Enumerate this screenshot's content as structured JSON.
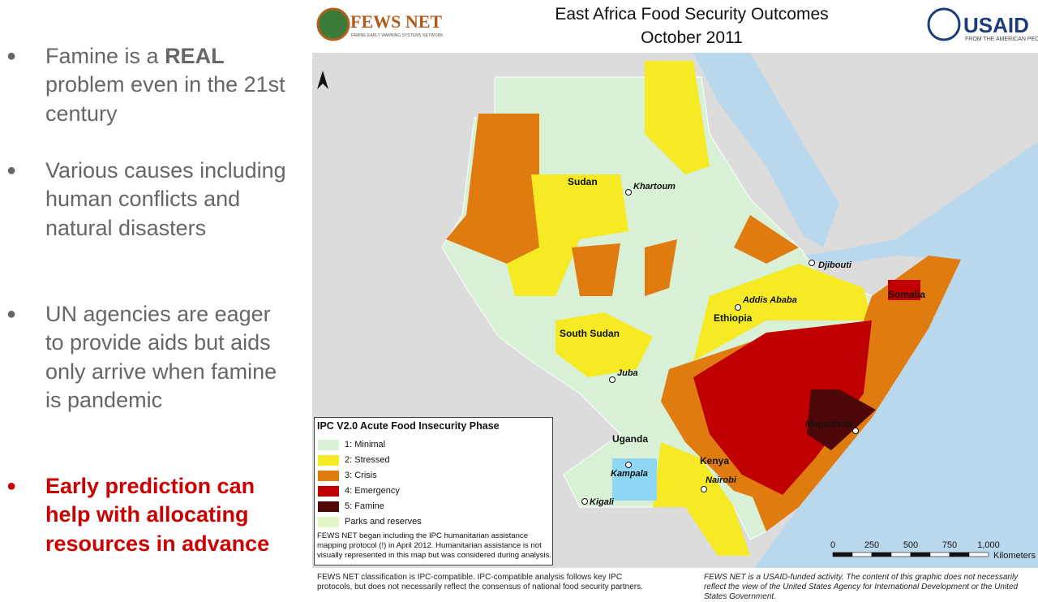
{
  "bullets": [
    [
      "Famine is a ",
      "REAL",
      " problem even in the 21st century"
    ],
    [
      "Various causes including human conflicts and natural disasters"
    ],
    [
      "UN agencies are eager to provide aids but aids only arrive when famine is pandemic"
    ],
    [
      "Early prediction can help with allocating resources in advance"
    ]
  ],
  "header": {
    "logo_left": "FEWS NET",
    "logo_left_tagline": "FAMINE EARLY WARNING SYSTEMS NETWORK",
    "title_lines": [
      "East Africa Food Security Outcomes",
      "October 2011"
    ],
    "logo_right": "USAID",
    "logo_right_tagline": "FROM THE AMERICAN PEOPLE"
  },
  "map": {
    "countries": [
      "Sudan",
      "South Sudan",
      "Ethiopia",
      "Somalia",
      "Uganda",
      "Kenya"
    ],
    "cities": [
      "Khartoum",
      "Juba",
      "Addis Ababa",
      "Djibouti",
      "Kampala",
      "Nairobi",
      "Kigali",
      "Mogadishu"
    ],
    "legend": {
      "title": "IPC V2.0 Acute Food Insecurity Phase",
      "items": [
        {
          "label": "1: Minimal",
          "color": "#d8f0d6"
        },
        {
          "label": "2: Stressed",
          "color": "#f5ea24"
        },
        {
          "label": "3: Crisis",
          "color": "#e07b10"
        },
        {
          "label": "4: Emergency",
          "color": "#c00000"
        },
        {
          "label": "5: Famine",
          "color": "#4e0808"
        },
        {
          "label": "Parks and reserves",
          "color": "#e2f6c6"
        }
      ],
      "note": "FEWS NET began including the IPC humanitarian assistance mapping protocol (!) in April 2012. Humanitarian assistance is not visually represented in this map but was considered during analysis."
    },
    "scale": {
      "ticks": [
        "0",
        "250",
        "500",
        "750",
        "1,000"
      ],
      "unit": "Kilometers"
    }
  },
  "footer": {
    "left": "FEWS NET classification is IPC-compatible. IPC-compatible analysis follows key IPC protocols, but does not necessarily reflect the consensus of national food security partners.",
    "right": "FEWS NET is a USAID-funded activity. The content of this graphic does not necessarily reflect the view of the United States Agency for International Development or the United States Government."
  }
}
